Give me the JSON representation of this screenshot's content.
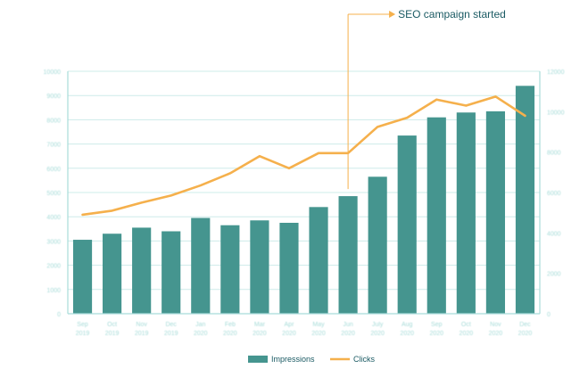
{
  "chart_data": {
    "type": "bar+line",
    "categories": [
      [
        "Sep",
        "2019"
      ],
      [
        "Oct",
        "2019"
      ],
      [
        "Nov",
        "2019"
      ],
      [
        "Dec",
        "2019"
      ],
      [
        "Jan",
        "2020"
      ],
      [
        "Feb",
        "2020"
      ],
      [
        "Mar",
        "2020"
      ],
      [
        "Apr",
        "2020"
      ],
      [
        "May",
        "2020"
      ],
      [
        "Jun",
        "2020"
      ],
      [
        "July",
        "2020"
      ],
      [
        "Aug",
        "2020"
      ],
      [
        "Sep",
        "2020"
      ],
      [
        "Oct",
        "2020"
      ],
      [
        "Nov",
        "2020"
      ],
      [
        "Dec",
        "2020"
      ]
    ],
    "series": [
      {
        "name": "Impressions",
        "type": "bar",
        "axis": "left",
        "color": "#45958f",
        "values": [
          3050,
          3300,
          3550,
          3400,
          3950,
          3650,
          3850,
          3750,
          4400,
          4850,
          5650,
          7350,
          8100,
          8300,
          8350,
          9400
        ]
      },
      {
        "name": "Clicks",
        "type": "line",
        "axis": "right",
        "color": "#f5b04c",
        "values": [
          4900,
          5100,
          5500,
          5850,
          6350,
          6950,
          7800,
          7200,
          7950,
          7950,
          9250,
          9700,
          10600,
          10300,
          10750,
          9800
        ]
      }
    ],
    "y_left": {
      "min": 0,
      "max": 10000,
      "ticks": [
        0,
        1000,
        2000,
        3000,
        4000,
        5000,
        6000,
        7000,
        8000,
        9000,
        10000
      ]
    },
    "y_right": {
      "min": 0,
      "max": 12000,
      "ticks": [
        0,
        2000,
        4000,
        6000,
        8000,
        10000,
        12000
      ]
    },
    "grid": true,
    "legend": "bottom",
    "annotation": {
      "text": "SEO campaign started",
      "category_index": 9,
      "color": "#f5b04c",
      "text_color": "#1a5a63"
    },
    "axis_color": "#a8dcd9",
    "tick_color": "#a8dcd9"
  }
}
